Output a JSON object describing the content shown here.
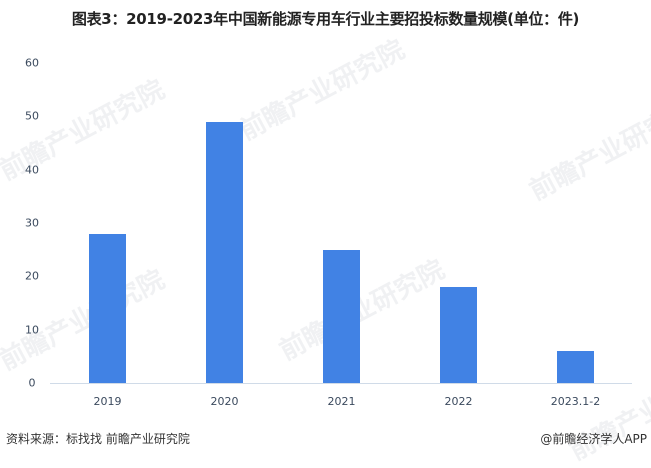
{
  "title": "图表3：2019-2023年中国新能源专用车行业主要招投标数量规模(单位：件)",
  "chart_data": {
    "type": "bar",
    "title": "图表3：2019-2023年中国新能源专用车行业主要招投标数量规模(单位：件)",
    "categories": [
      "2019",
      "2020",
      "2021",
      "2022",
      "2023.1-2"
    ],
    "values": [
      28,
      49,
      25,
      18,
      6
    ],
    "xlabel": "",
    "ylabel": "",
    "ylim": [
      0,
      60
    ],
    "yticks": [
      "0",
      "10",
      "20",
      "30",
      "40",
      "50",
      "60"
    ],
    "grid": false,
    "legend": null,
    "bar_color": "#4182e4",
    "unit": "件"
  },
  "watermark": "前瞻产业研究院",
  "footer": {
    "source": "资料来源：标找找 前瞻产业研究院",
    "credit": "@前瞻经济学人APP"
  }
}
